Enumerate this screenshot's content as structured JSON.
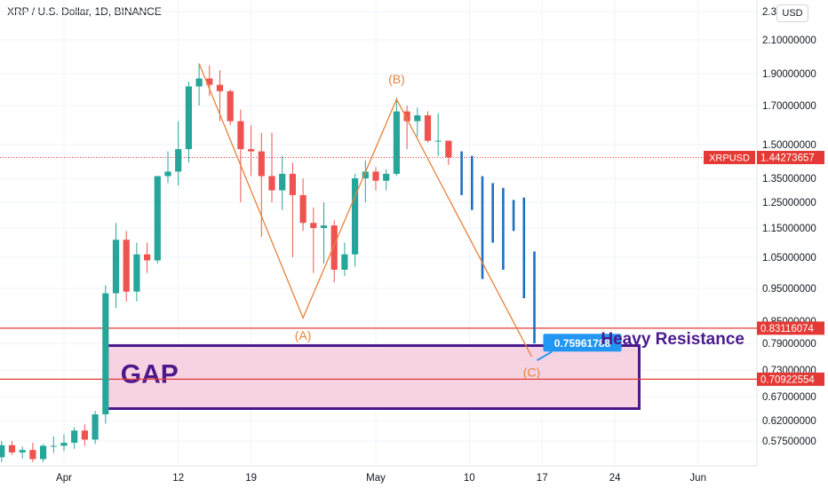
{
  "header": {
    "title": "XRP / U.S. Dollar, 1D, BINANCE",
    "currency": "USD"
  },
  "colors": {
    "up": "#26a69a",
    "down": "#ef5350",
    "projection": "#1e6fc4",
    "pattern": "#e8823a",
    "level": "#e53935",
    "gap_fill": "#f6d3e2",
    "gap_border": "#4a1a8c",
    "callout": "#2196f3"
  },
  "chart_data": {
    "type": "candlestick",
    "symbol": "XRPUSD",
    "y_ticks": [
      "0.57500000",
      "0.62000000",
      "0.67000000",
      "0.73000000",
      "0.79000000",
      "0.85000000",
      "0.95000000",
      "1.05000000",
      "1.15000000",
      "1.25000000",
      "1.35000000",
      "1.50000000",
      "1.70000000",
      "1.90000000",
      "2.10000000",
      "2.3"
    ],
    "x_ticks": [
      "Apr",
      "12",
      "19",
      "May",
      "10",
      "17",
      "24",
      "Jun"
    ],
    "x_tick_dates": [
      "2021-04-01",
      "2021-04-12",
      "2021-04-19",
      "2021-05-01",
      "2021-05-10",
      "2021-05-17",
      "2021-05-24",
      "2021-06-01"
    ],
    "candles": [
      {
        "d": "2021-03-21",
        "o": 0.557,
        "h": 0.565,
        "l": 0.543,
        "c": 0.548
      },
      {
        "d": "2021-03-22",
        "o": 0.548,
        "h": 0.558,
        "l": 0.535,
        "c": 0.538
      },
      {
        "d": "2021-03-23",
        "o": 0.538,
        "h": 0.552,
        "l": 0.52,
        "c": 0.532
      },
      {
        "d": "2021-03-24",
        "o": 0.532,
        "h": 0.537,
        "l": 0.522,
        "c": 0.529
      },
      {
        "d": "2021-03-25",
        "o": 0.529,
        "h": 0.56,
        "l": 0.522,
        "c": 0.548
      },
      {
        "d": "2021-03-26",
        "o": 0.548,
        "h": 0.575,
        "l": 0.54,
        "c": 0.568
      },
      {
        "d": "2021-03-27",
        "o": 0.568,
        "h": 0.575,
        "l": 0.552,
        "c": 0.556
      },
      {
        "d": "2021-03-28",
        "o": 0.556,
        "h": 0.566,
        "l": 0.546,
        "c": 0.56
      },
      {
        "d": "2021-03-29",
        "o": 0.56,
        "h": 0.572,
        "l": 0.54,
        "c": 0.545
      },
      {
        "d": "2021-03-30",
        "o": 0.545,
        "h": 0.57,
        "l": 0.54,
        "c": 0.567
      },
      {
        "d": "2021-03-31",
        "o": 0.567,
        "h": 0.585,
        "l": 0.555,
        "c": 0.567
      },
      {
        "d": "2021-04-01",
        "o": 0.567,
        "h": 0.59,
        "l": 0.558,
        "c": 0.572
      },
      {
        "d": "2021-04-02",
        "o": 0.572,
        "h": 0.605,
        "l": 0.562,
        "c": 0.598
      },
      {
        "d": "2021-04-03",
        "o": 0.598,
        "h": 0.612,
        "l": 0.567,
        "c": 0.578
      },
      {
        "d": "2021-04-04",
        "o": 0.578,
        "h": 0.64,
        "l": 0.57,
        "c": 0.633
      },
      {
        "d": "2021-04-05",
        "o": 0.633,
        "h": 0.96,
        "l": 0.613,
        "c": 0.935
      },
      {
        "d": "2021-04-06",
        "o": 0.935,
        "h": 1.17,
        "l": 0.89,
        "c": 1.11
      },
      {
        "d": "2021-04-07",
        "o": 1.11,
        "h": 1.14,
        "l": 0.91,
        "c": 0.94
      },
      {
        "d": "2021-04-08",
        "o": 0.94,
        "h": 1.1,
        "l": 0.91,
        "c": 1.06
      },
      {
        "d": "2021-04-09",
        "o": 1.06,
        "h": 1.1,
        "l": 1.0,
        "c": 1.04
      },
      {
        "d": "2021-04-10",
        "o": 1.04,
        "h": 1.36,
        "l": 1.03,
        "c": 1.36
      },
      {
        "d": "2021-04-11",
        "o": 1.36,
        "h": 1.47,
        "l": 1.33,
        "c": 1.38
      },
      {
        "d": "2021-04-12",
        "o": 1.38,
        "h": 1.62,
        "l": 1.32,
        "c": 1.48
      },
      {
        "d": "2021-04-13",
        "o": 1.48,
        "h": 1.85,
        "l": 1.42,
        "c": 1.82
      },
      {
        "d": "2021-04-14",
        "o": 1.82,
        "h": 1.96,
        "l": 1.7,
        "c": 1.87
      },
      {
        "d": "2021-04-15",
        "o": 1.87,
        "h": 1.95,
        "l": 1.76,
        "c": 1.83
      },
      {
        "d": "2021-04-16",
        "o": 1.83,
        "h": 1.92,
        "l": 1.62,
        "c": 1.79
      },
      {
        "d": "2021-04-17",
        "o": 1.79,
        "h": 1.8,
        "l": 1.6,
        "c": 1.62
      },
      {
        "d": "2021-04-18",
        "o": 1.62,
        "h": 1.68,
        "l": 1.25,
        "c": 1.48
      },
      {
        "d": "2021-04-19",
        "o": 1.48,
        "h": 1.6,
        "l": 1.36,
        "c": 1.47
      },
      {
        "d": "2021-04-20",
        "o": 1.47,
        "h": 1.56,
        "l": 1.12,
        "c": 1.36
      },
      {
        "d": "2021-04-21",
        "o": 1.36,
        "h": 1.56,
        "l": 1.25,
        "c": 1.3
      },
      {
        "d": "2021-04-22",
        "o": 1.3,
        "h": 1.45,
        "l": 1.22,
        "c": 1.37
      },
      {
        "d": "2021-04-23",
        "o": 1.37,
        "h": 1.42,
        "l": 1.05,
        "c": 1.28
      },
      {
        "d": "2021-04-24",
        "o": 1.28,
        "h": 1.35,
        "l": 1.14,
        "c": 1.17
      },
      {
        "d": "2021-04-25",
        "o": 1.17,
        "h": 1.23,
        "l": 1.0,
        "c": 1.15
      },
      {
        "d": "2021-04-26",
        "o": 1.15,
        "h": 1.25,
        "l": 1.03,
        "c": 1.16
      },
      {
        "d": "2021-04-27",
        "o": 1.16,
        "h": 1.18,
        "l": 0.97,
        "c": 1.01
      },
      {
        "d": "2021-04-28",
        "o": 1.01,
        "h": 1.1,
        "l": 0.99,
        "c": 1.06
      },
      {
        "d": "2021-04-29",
        "o": 1.06,
        "h": 1.37,
        "l": 1.02,
        "c": 1.35
      },
      {
        "d": "2021-04-30",
        "o": 1.35,
        "h": 1.43,
        "l": 1.25,
        "c": 1.38
      },
      {
        "d": "2021-05-01",
        "o": 1.38,
        "h": 1.4,
        "l": 1.3,
        "c": 1.34
      },
      {
        "d": "2021-05-02",
        "o": 1.34,
        "h": 1.39,
        "l": 1.3,
        "c": 1.37
      },
      {
        "d": "2021-05-03",
        "o": 1.37,
        "h": 1.75,
        "l": 1.36,
        "c": 1.67
      },
      {
        "d": "2021-05-04",
        "o": 1.67,
        "h": 1.7,
        "l": 1.48,
        "c": 1.62
      },
      {
        "d": "2021-05-05",
        "o": 1.62,
        "h": 1.69,
        "l": 1.54,
        "c": 1.65
      },
      {
        "d": "2021-05-06",
        "o": 1.65,
        "h": 1.67,
        "l": 1.51,
        "c": 1.52
      },
      {
        "d": "2021-05-07",
        "o": 1.52,
        "h": 1.66,
        "l": 1.45,
        "c": 1.52
      },
      {
        "d": "2021-05-08",
        "o": 1.52,
        "h": 1.52,
        "l": 1.41,
        "c": 1.443
      }
    ],
    "projection_bars": [
      {
        "d": "2021-05-09",
        "h": 1.47,
        "l": 1.28
      },
      {
        "d": "2021-05-10",
        "h": 1.45,
        "l": 1.22
      },
      {
        "d": "2021-05-11",
        "h": 1.36,
        "l": 0.98
      },
      {
        "d": "2021-05-12",
        "h": 1.33,
        "l": 1.1
      },
      {
        "d": "2021-05-13",
        "h": 1.31,
        "l": 1.01
      },
      {
        "d": "2021-05-14",
        "h": 1.26,
        "l": 1.14
      },
      {
        "d": "2021-05-15",
        "h": 1.27,
        "l": 0.92
      },
      {
        "d": "2021-05-16",
        "h": 1.07,
        "l": 0.79
      }
    ],
    "pattern_lines": [
      [
        {
          "d": "2021-04-14",
          "p": 1.96
        },
        {
          "d": "2021-04-24",
          "p": 0.86
        },
        {
          "d": "2021-05-03",
          "p": 1.74
        },
        {
          "d": "2021-05-16",
          "p": 0.76
        }
      ]
    ],
    "pattern_labels": [
      {
        "text": "(A)",
        "d": "2021-04-24",
        "p": 0.8
      },
      {
        "text": "(B)",
        "d": "2021-05-03",
        "p": 1.84
      },
      {
        "text": "(C)",
        "d": "2021-05-16",
        "p": 0.715
      }
    ],
    "current_price": {
      "label": "XRPUSD",
      "value": "1.44273657",
      "price": 1.44273657
    },
    "horizontal_levels": [
      {
        "value": "0.83116074",
        "price": 0.83116074
      },
      {
        "value": "0.70922554",
        "price": 0.70922554
      }
    ],
    "callout": {
      "text": "0.75961788",
      "price": 0.75961788,
      "d": "2021-05-16"
    },
    "gap_box": {
      "label": "GAP",
      "from": "2021-04-05",
      "to": "2021-05-26",
      "top": 0.785,
      "bottom": 0.645
    },
    "annotation": {
      "text": "Heavy Resistance"
    }
  }
}
